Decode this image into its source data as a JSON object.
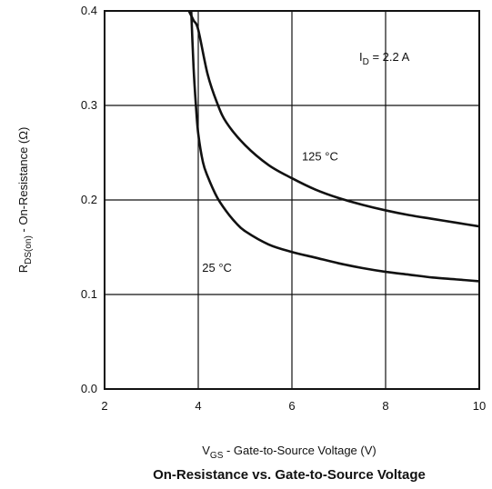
{
  "chart_data": {
    "type": "line",
    "title": "On-Resistance vs. Gate-to-Source Voltage",
    "xlabel": {
      "main": "V",
      "sub": "GS",
      "rest": " - Gate-to-Source Voltage (V)"
    },
    "ylabel": {
      "main": "R",
      "sub": "DS(on)",
      "rest": " - On-Resistance (Ω)"
    },
    "xlim": [
      2,
      10
    ],
    "ylim": [
      0.0,
      0.4
    ],
    "x_ticks": [
      2,
      4,
      6,
      8,
      10
    ],
    "x_tick_labels": [
      "2",
      "4",
      "6",
      "8",
      "10"
    ],
    "y_ticks": [
      0.0,
      0.1,
      0.2,
      0.3,
      0.4
    ],
    "y_tick_labels": [
      "0.0",
      "0.1",
      "0.2",
      "0.3",
      "0.4"
    ],
    "grid": true,
    "condition": {
      "main": "I",
      "sub": "D",
      "rest": " = 2.2  A"
    },
    "series": [
      {
        "name": "125 °C",
        "x": [
          3.8,
          3.9,
          4.0,
          4.2,
          4.4,
          4.6,
          5.0,
          5.5,
          6.0,
          6.5,
          7.0,
          7.5,
          8.0,
          8.5,
          9.0,
          9.5,
          10.0
        ],
        "y": [
          0.4,
          0.39,
          0.38,
          0.333,
          0.303,
          0.282,
          0.258,
          0.237,
          0.223,
          0.211,
          0.202,
          0.195,
          0.189,
          0.184,
          0.18,
          0.176,
          0.172
        ]
      },
      {
        "name": "25 °C",
        "x": [
          3.85,
          3.9,
          3.95,
          4.0,
          4.1,
          4.2,
          4.4,
          4.6,
          4.8,
          5.0,
          5.5,
          6.0,
          6.5,
          7.0,
          7.5,
          8.0,
          8.5,
          9.0,
          9.5,
          10.0
        ],
        "y": [
          0.4,
          0.34,
          0.3,
          0.27,
          0.24,
          0.225,
          0.203,
          0.188,
          0.176,
          0.167,
          0.153,
          0.145,
          0.139,
          0.133,
          0.128,
          0.124,
          0.121,
          0.118,
          0.116,
          0.114
        ]
      }
    ],
    "annotations": [
      {
        "text": "125  °C",
        "x": 6.6,
        "y": 0.242
      },
      {
        "text": "25 °C",
        "x": 4.4,
        "y": 0.124
      }
    ]
  }
}
